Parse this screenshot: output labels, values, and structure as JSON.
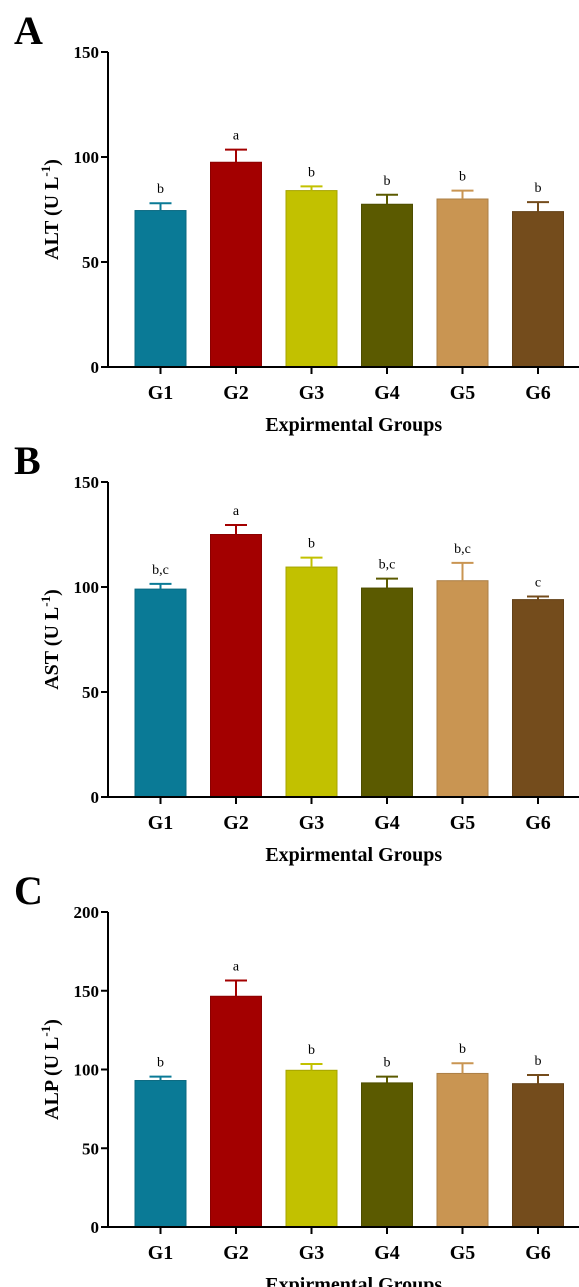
{
  "chart_data": [
    {
      "type": "bar",
      "panel_label": "A",
      "categories": [
        "G1",
        "G2",
        "G3",
        "G4",
        "G5",
        "G6"
      ],
      "values": [
        74.5,
        97.5,
        84,
        77.5,
        80,
        74
      ],
      "errors": [
        3.5,
        6,
        2,
        4.5,
        4,
        4.5
      ],
      "significance": [
        "b",
        "a",
        "b",
        "b",
        "b",
        "b"
      ],
      "colors": [
        "#0a7a96",
        "#a30000",
        "#c2c100",
        "#5b5a00",
        "#c99552",
        "#744c1c"
      ],
      "ylabel": "ALT (U L",
      "ylabel_sup": "-1",
      "ylabel_close": ")",
      "xlabel": "Expirmental Groups",
      "ylim": [
        0,
        150
      ],
      "yticks": [
        0,
        50,
        100,
        150
      ],
      "grid": false
    },
    {
      "type": "bar",
      "panel_label": "B",
      "categories": [
        "G1",
        "G2",
        "G3",
        "G4",
        "G5",
        "G6"
      ],
      "values": [
        99,
        125,
        109.5,
        99.5,
        103,
        94
      ],
      "errors": [
        2.5,
        4.5,
        4.5,
        4.5,
        8.5,
        1.5
      ],
      "significance": [
        "b,c",
        "a",
        "b",
        "b,c",
        "b,c",
        "c"
      ],
      "colors": [
        "#0a7a96",
        "#a30000",
        "#c2c100",
        "#5b5a00",
        "#c99552",
        "#744c1c"
      ],
      "ylabel": "AST (U L",
      "ylabel_sup": "-1",
      "ylabel_close": ")",
      "xlabel": "Expirmental Groups",
      "ylim": [
        0,
        150
      ],
      "yticks": [
        0,
        50,
        100,
        150
      ],
      "grid": false
    },
    {
      "type": "bar",
      "panel_label": "C",
      "categories": [
        "G1",
        "G2",
        "G3",
        "G4",
        "G5",
        "G6"
      ],
      "values": [
        93,
        146.5,
        99.5,
        91.5,
        97.5,
        91
      ],
      "errors": [
        2.5,
        10,
        4,
        4,
        6.5,
        5.5
      ],
      "significance": [
        "b",
        "a",
        "b",
        "b",
        "b",
        "b"
      ],
      "colors": [
        "#0a7a96",
        "#a30000",
        "#c2c100",
        "#5b5a00",
        "#c99552",
        "#744c1c"
      ],
      "ylabel": "ALP (U L",
      "ylabel_sup": "-1",
      "ylabel_close": ")",
      "xlabel": "Expirmental Groups",
      "ylim": [
        0,
        200
      ],
      "yticks": [
        0,
        50,
        100,
        150,
        200
      ],
      "grid": false
    }
  ]
}
